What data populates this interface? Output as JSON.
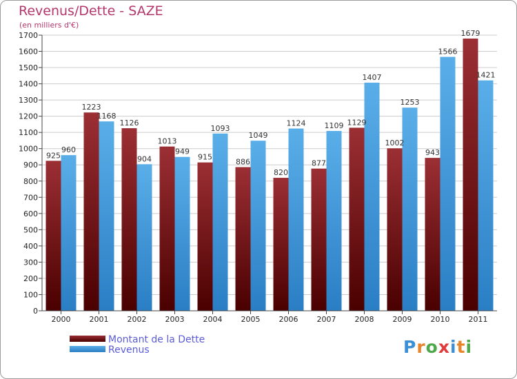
{
  "title": "Revenus/Dette - SAZE",
  "subtitle": "(en milliers d'€)",
  "legend": {
    "debt_label": "Montant de la Dette",
    "revenue_label": "Revenus"
  },
  "logo_text": "Proxiti",
  "colors": {
    "debt_top": "#9b2f34",
    "debt_bottom": "#4a0000",
    "revenue_top": "#5aaee8",
    "revenue_bottom": "#2a7ec4",
    "title": "#b5366a",
    "legend_text": "#5b5bd8",
    "grid": "#cccccc"
  },
  "chart_data": {
    "type": "bar",
    "title": "Revenus/Dette - SAZE",
    "subtitle": "(en milliers d'€)",
    "categories": [
      "2000",
      "2001",
      "2002",
      "2003",
      "2004",
      "2005",
      "2006",
      "2007",
      "2008",
      "2009",
      "2010",
      "2011"
    ],
    "series": [
      {
        "name": "Montant de la Dette",
        "values": [
          925,
          1223,
          1126,
          1013,
          915,
          886,
          820,
          877,
          1129,
          1002,
          943,
          1679
        ]
      },
      {
        "name": "Revenus",
        "values": [
          960,
          1168,
          904,
          949,
          1093,
          1049,
          1124,
          1109,
          1407,
          1253,
          1566,
          1421
        ]
      }
    ],
    "ylim": [
      0,
      1700
    ],
    "yticks": [
      0,
      100,
      200,
      300,
      400,
      500,
      600,
      700,
      800,
      900,
      1000,
      1100,
      1200,
      1300,
      1400,
      1500,
      1600,
      1700
    ],
    "grid": true,
    "legend_position": "bottom-left",
    "data_labels": true
  }
}
